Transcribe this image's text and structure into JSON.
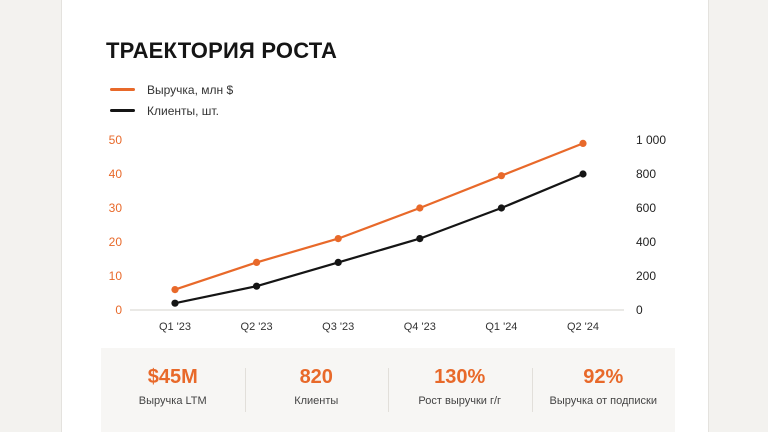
{
  "title": "ТРАЕКТОРИЯ РОСТА",
  "colors": {
    "accent": "#e8692a",
    "dark": "#151515"
  },
  "chart_data": {
    "type": "line",
    "categories": [
      "Q1 '23",
      "Q2 '23",
      "Q3 '23",
      "Q4 '23",
      "Q1 '24",
      "Q2 '24"
    ],
    "series": [
      {
        "name": "Выручка, млн $",
        "axis": "left",
        "color": "#e8692a",
        "values": [
          6,
          14,
          21,
          30,
          39.5,
          49
        ]
      },
      {
        "name": "Клиенты, шт.",
        "axis": "right",
        "color": "#151515",
        "values": [
          40,
          140,
          280,
          420,
          600,
          800
        ]
      }
    ],
    "y_left": {
      "lim": [
        0,
        50
      ],
      "ticks": [
        "0",
        "10",
        "20",
        "30",
        "40",
        "50"
      ]
    },
    "y_right": {
      "lim": [
        0,
        1000
      ],
      "ticks": [
        "0",
        "200",
        "400",
        "600",
        "800",
        "1 000"
      ]
    },
    "legend": "top-left",
    "grid": false
  },
  "stats": [
    {
      "value": "$45M",
      "label": "Выручка LTM"
    },
    {
      "value": "820",
      "label": "Клиенты"
    },
    {
      "value": "130%",
      "label": "Рост выручки г/г"
    },
    {
      "value": "92%",
      "label": "Выручка от подписки"
    }
  ]
}
